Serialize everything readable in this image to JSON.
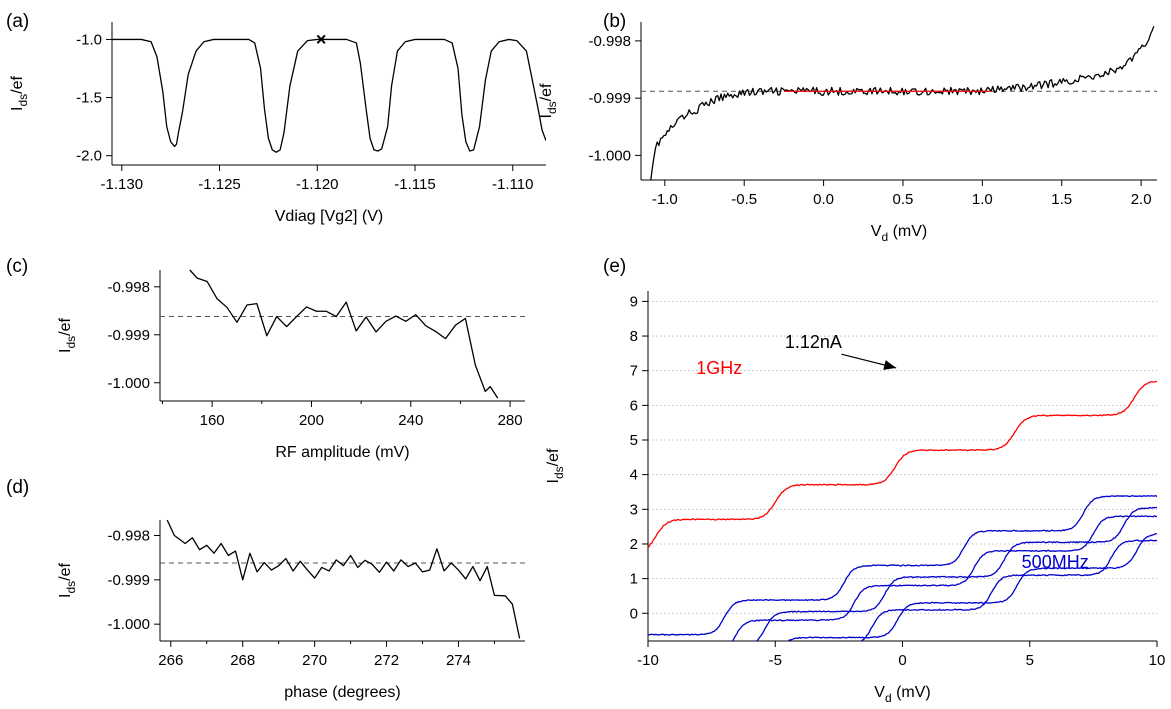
{
  "chart_data": [
    {
      "panel": "(a)",
      "type": "line",
      "xlabel": "Vdiag [Vg2] (V)",
      "ylabel": "I_ds/ef",
      "xlim": [
        -1.1305,
        -1.1083
      ],
      "ylim": [
        -2.08,
        -0.85
      ],
      "xticks": [
        -1.13,
        -1.125,
        -1.12,
        -1.115,
        -1.11
      ],
      "xtick_labels": [
        "-1.130",
        "-1.125",
        "-1.120",
        "-1.115",
        "-1.110"
      ],
      "yticks": [
        -1.0,
        -1.5,
        -2.0
      ],
      "ytick_labels": [
        "-1.0",
        "-1.5",
        "-2.0"
      ],
      "series": [
        {
          "color": "#000000",
          "x": [
            -1.1305,
            -1.129,
            -1.1285,
            -1.1282,
            -1.1279,
            -1.1277,
            -1.1275,
            -1.1273,
            -1.1272,
            -1.1271,
            -1.1269,
            -1.1266,
            -1.1262,
            -1.1258,
            -1.1253,
            -1.125,
            -1.1235,
            -1.1232,
            -1.1229,
            -1.1227,
            -1.1225,
            -1.1223,
            -1.1221,
            -1.1219,
            -1.1217,
            -1.1214,
            -1.121,
            -1.1205,
            -1.12,
            -1.1185,
            -1.118,
            -1.1178,
            -1.1175,
            -1.1173,
            -1.1171,
            -1.1169,
            -1.1167,
            -1.1164,
            -1.1162,
            -1.1159,
            -1.1155,
            -1.115,
            -1.1135,
            -1.1131,
            -1.1128,
            -1.1126,
            -1.1124,
            -1.1122,
            -1.112,
            -1.1117,
            -1.1114,
            -1.1111,
            -1.1107,
            -1.1102,
            -1.1098,
            -1.1093,
            -1.109,
            -1.1087,
            -1.1085,
            -1.1083
          ],
          "y": [
            -1.0,
            -1.0,
            -1.02,
            -1.15,
            -1.45,
            -1.75,
            -1.88,
            -1.92,
            -1.9,
            -1.8,
            -1.63,
            -1.3,
            -1.1,
            -1.02,
            -1.0,
            -1.0,
            -1.0,
            -1.03,
            -1.25,
            -1.6,
            -1.85,
            -1.95,
            -1.97,
            -1.95,
            -1.8,
            -1.4,
            -1.1,
            -1.01,
            -1.0,
            -1.0,
            -1.03,
            -1.2,
            -1.6,
            -1.85,
            -1.95,
            -1.96,
            -1.94,
            -1.75,
            -1.4,
            -1.1,
            -1.02,
            -1.0,
            -1.0,
            -1.03,
            -1.25,
            -1.65,
            -1.88,
            -1.96,
            -1.95,
            -1.75,
            -1.35,
            -1.1,
            -1.02,
            -1.0,
            -1.01,
            -1.1,
            -1.35,
            -1.6,
            -1.78,
            -1.87
          ]
        }
      ],
      "marker": {
        "symbol": "×",
        "x": -1.1198,
        "y": -1.0
      }
    },
    {
      "panel": "(b)",
      "type": "line",
      "xlabel": "V",
      "xlabel_sub": "d",
      "xlabel_unit": " (mV)",
      "ylabel": "I_ds/ef",
      "xlim": [
        -1.15,
        2.1
      ],
      "ylim": [
        -1.00043,
        -0.99767
      ],
      "xticks": [
        -1.0,
        -0.5,
        0.0,
        0.5,
        1.0,
        1.5,
        2.0
      ],
      "xtick_labels": [
        "-1.0",
        "-0.5",
        "0.0",
        "0.5",
        "1.0",
        "1.5",
        "2.0"
      ],
      "yticks": [
        -0.998,
        -0.999,
        -1.0
      ],
      "ytick_labels": [
        "-0.998",
        "-0.999",
        "-1.000"
      ],
      "reference_y": -0.99888,
      "series": [
        {
          "color": "#000000",
          "noise": 7e-05,
          "x": [
            -1.09,
            -1.06,
            -1.0,
            -0.9,
            -0.8,
            -0.7,
            -0.6,
            -0.5,
            -0.3,
            0.0,
            0.5,
            1.0,
            1.3,
            1.5,
            1.7,
            1.85,
            1.95,
            2.02,
            2.06,
            2.08
          ],
          "y": [
            -1.0004,
            -0.99985,
            -0.99965,
            -0.99935,
            -0.9992,
            -0.99905,
            -0.99895,
            -0.9989,
            -0.99888,
            -0.99888,
            -0.99888,
            -0.99888,
            -0.9988,
            -0.99872,
            -0.99862,
            -0.9985,
            -0.9983,
            -0.9981,
            -0.99785,
            -0.99772
          ]
        },
        {
          "color": "#ff0000",
          "x": [
            -0.25,
            1.05
          ],
          "y": [
            -0.99888,
            -0.99888
          ]
        }
      ]
    },
    {
      "panel": "(c)",
      "type": "line",
      "xlabel": "RF amplitude (mV)",
      "ylabel": "I_ds/ef",
      "xlim": [
        139,
        286
      ],
      "ylim": [
        -1.00038,
        -0.99765
      ],
      "xticks": [
        160,
        200,
        240,
        280
      ],
      "xtick_labels": [
        "160",
        "200",
        "240",
        "280"
      ],
      "minor_xticks": [
        140,
        180,
        220,
        260
      ],
      "yticks": [
        -0.998,
        -0.999,
        -1.0
      ],
      "ytick_labels": [
        "-0.998",
        "-0.999",
        "-1.000"
      ],
      "reference_y": -0.99862,
      "series": [
        {
          "color": "#000000",
          "x": [
            151,
            154,
            158,
            162,
            166,
            170,
            174,
            178,
            182,
            186,
            190,
            194,
            198,
            202,
            206,
            210,
            214,
            218,
            222,
            226,
            230,
            234,
            238,
            242,
            246,
            250,
            254,
            258,
            262,
            266,
            270,
            272,
            275
          ],
          "y": [
            -0.99765,
            -0.99782,
            -0.99789,
            -0.99825,
            -0.99843,
            -0.99874,
            -0.99838,
            -0.99835,
            -0.99902,
            -0.99862,
            -0.99883,
            -0.99862,
            -0.99842,
            -0.99851,
            -0.99851,
            -0.99862,
            -0.99832,
            -0.99892,
            -0.99863,
            -0.99894,
            -0.99872,
            -0.99861,
            -0.99872,
            -0.99858,
            -0.99881,
            -0.99893,
            -0.99908,
            -0.9988,
            -0.99866,
            -0.99963,
            -1.00018,
            -1.00008,
            -1.00032
          ]
        }
      ]
    },
    {
      "panel": "(d)",
      "type": "line",
      "xlabel": "phase (degrees)",
      "ylabel": "I_ds/ef",
      "xlim": [
        265.7,
        275.85
      ],
      "ylim": [
        -1.00038,
        -0.99765
      ],
      "xticks": [
        266,
        268,
        270,
        272,
        274
      ],
      "xtick_labels": [
        "266",
        "268",
        "270",
        "272",
        "274"
      ],
      "minor_xticks": [
        267,
        269,
        271,
        273,
        275
      ],
      "yticks": [
        -0.998,
        -0.999,
        -1.0
      ],
      "ytick_labels": [
        "-0.998",
        "-0.999",
        "-1.000"
      ],
      "reference_y": -0.99862,
      "series": [
        {
          "color": "#000000",
          "x": [
            265.9,
            266.1,
            266.4,
            266.6,
            266.8,
            267.0,
            267.2,
            267.4,
            267.6,
            267.8,
            268.0,
            268.2,
            268.4,
            268.6,
            268.8,
            269.0,
            269.2,
            269.4,
            269.6,
            269.8,
            270.0,
            270.2,
            270.4,
            270.6,
            270.8,
            271.0,
            271.2,
            271.4,
            271.6,
            271.8,
            272.0,
            272.2,
            272.4,
            272.6,
            272.8,
            273.0,
            273.2,
            273.4,
            273.6,
            273.8,
            274.0,
            274.2,
            274.4,
            274.6,
            274.8,
            275.0,
            275.3,
            275.5,
            275.7
          ],
          "y": [
            -0.99765,
            -0.998,
            -0.99818,
            -0.99805,
            -0.99832,
            -0.99822,
            -0.9984,
            -0.99818,
            -0.99845,
            -0.99835,
            -0.999,
            -0.9984,
            -0.99882,
            -0.99861,
            -0.99878,
            -0.99868,
            -0.99852,
            -0.9988,
            -0.99858,
            -0.99878,
            -0.99896,
            -0.99872,
            -0.9988,
            -0.99855,
            -0.99868,
            -0.99845,
            -0.99872,
            -0.99856,
            -0.99865,
            -0.99883,
            -0.9986,
            -0.9988,
            -0.99855,
            -0.9987,
            -0.99862,
            -0.99882,
            -0.99878,
            -0.9983,
            -0.9988,
            -0.99862,
            -0.99878,
            -0.99898,
            -0.9987,
            -0.99902,
            -0.9987,
            -0.99935,
            -0.99936,
            -0.99955,
            -1.00032
          ]
        }
      ]
    },
    {
      "panel": "(e)",
      "type": "line",
      "xlabel": "V",
      "xlabel_sub": "d",
      "xlabel_unit": " (mV)",
      "ylabel": "I_ds/ef",
      "xlim": [
        -10,
        10
      ],
      "ylim": [
        -0.8,
        9.3
      ],
      "xticks": [
        -10,
        -5,
        0,
        5,
        10
      ],
      "xtick_labels": [
        "-10",
        "-5",
        "0",
        "5",
        "10"
      ],
      "yticks": [
        0,
        1,
        2,
        3,
        4,
        5,
        6,
        7,
        8,
        9
      ],
      "ytick_labels": [
        "0",
        "1",
        "2",
        "3",
        "4",
        "5",
        "6",
        "7",
        "8",
        "9"
      ],
      "grid": "horizontal dotted",
      "series": [
        {
          "color": "#ff0000",
          "step_period": 4.7,
          "step_width": 0.85,
          "start": 3.71,
          "offset": -0.3,
          "x_range": [
            -10,
            10
          ]
        },
        {
          "color": "#0000cc",
          "step_period": 4.7,
          "step_width": 0.75,
          "start": 0.38,
          "offset": -2.3,
          "x_range": [
            -10,
            10
          ]
        },
        {
          "color": "#0000cc",
          "step_period": 4.7,
          "step_width": 0.75,
          "start": 0.05,
          "offset": -0.7,
          "x_range": [
            -10,
            10
          ]
        },
        {
          "color": "#0000cc",
          "step_period": 4.7,
          "step_width": 0.75,
          "start": -0.2,
          "offset": -1.9,
          "x_range": [
            -10,
            10
          ]
        },
        {
          "color": "#0000cc",
          "step_period": 4.7,
          "step_width": 0.75,
          "start": -0.7,
          "offset": -0.2,
          "x_range": [
            -10,
            10
          ]
        },
        {
          "color": "#0000cc",
          "step_period": 4.7,
          "step_width": 0.75,
          "start": -0.9,
          "offset": -1.2,
          "x_range": [
            -10,
            10
          ]
        }
      ],
      "annotations": [
        {
          "text": "1.12nA",
          "x": -3.5,
          "y": 7.65,
          "arrow_to": [
            -0.25,
            7.08
          ],
          "color": "#000000"
        },
        {
          "text": "1GHz",
          "x": -7.2,
          "y": 6.9,
          "color": "#ff0000"
        },
        {
          "text": "500MHz",
          "x": 6.0,
          "y": 1.3,
          "color": "#0000cc"
        }
      ]
    }
  ]
}
